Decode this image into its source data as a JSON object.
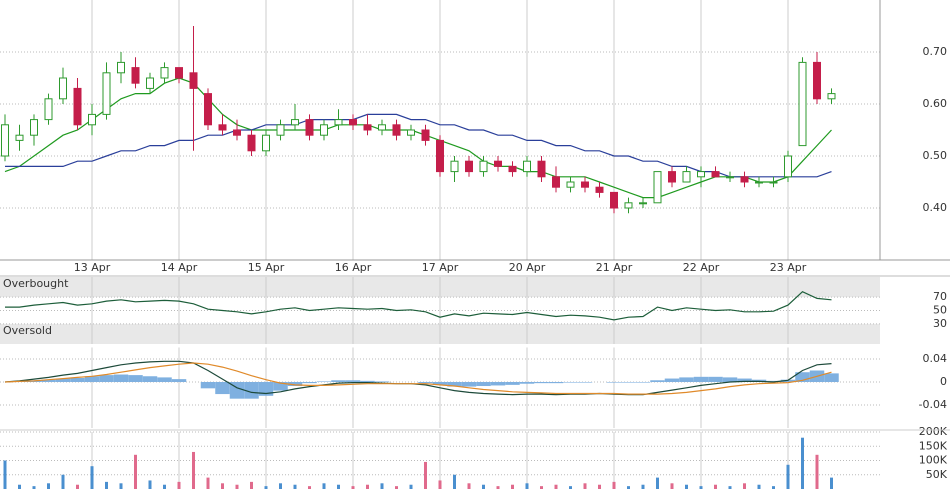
{
  "chart_data": [
    {
      "type": "candlestick",
      "categories": [
        null,
        null,
        null,
        null,
        null,
        null,
        "13 Apr",
        null,
        null,
        null,
        null,
        null,
        "14 Apr",
        null,
        null,
        null,
        null,
        null,
        "15 Apr",
        null,
        null,
        null,
        null,
        null,
        "16 Apr",
        null,
        null,
        null,
        null,
        null,
        "17 Apr",
        null,
        null,
        null,
        null,
        null,
        "20 Apr",
        null,
        null,
        null,
        null,
        null,
        "21 Apr",
        null,
        null,
        null,
        null,
        null,
        "22 Apr",
        null,
        null,
        null,
        null,
        null,
        "23 Apr",
        null,
        null,
        null
      ],
      "open": [
        0.5,
        0.53,
        0.54,
        0.57,
        0.61,
        0.63,
        0.56,
        0.58,
        0.66,
        0.67,
        0.63,
        0.65,
        0.67,
        0.66,
        0.62,
        0.56,
        0.55,
        0.54,
        0.51,
        0.54,
        0.56,
        0.57,
        0.54,
        0.56,
        0.57,
        0.56,
        0.55,
        0.56,
        0.54,
        0.55,
        0.53,
        0.47,
        0.49,
        0.47,
        0.49,
        0.48,
        0.47,
        0.49,
        0.46,
        0.44,
        0.45,
        0.44,
        0.43,
        0.4,
        0.41,
        0.41,
        0.47,
        0.45,
        0.46,
        0.47,
        0.46,
        0.46,
        0.45,
        0.45,
        0.46,
        0.52,
        0.68,
        0.61
      ],
      "high": [
        0.58,
        0.56,
        0.58,
        0.62,
        0.67,
        0.65,
        0.6,
        0.68,
        0.7,
        0.69,
        0.66,
        0.68,
        0.67,
        0.75,
        0.63,
        0.58,
        0.57,
        0.55,
        0.55,
        0.57,
        0.6,
        0.58,
        0.57,
        0.59,
        0.58,
        0.58,
        0.57,
        0.57,
        0.56,
        0.56,
        0.54,
        0.5,
        0.5,
        0.5,
        0.5,
        0.49,
        0.5,
        0.5,
        0.48,
        0.46,
        0.46,
        0.45,
        0.43,
        0.42,
        0.42,
        0.47,
        0.48,
        0.48,
        0.48,
        0.48,
        0.47,
        0.47,
        0.46,
        0.46,
        0.51,
        0.69,
        0.7,
        0.63
      ],
      "low": [
        0.49,
        0.51,
        0.52,
        0.56,
        0.6,
        0.55,
        0.54,
        0.57,
        0.64,
        0.63,
        0.62,
        0.64,
        0.64,
        0.51,
        0.55,
        0.54,
        0.53,
        0.5,
        0.5,
        0.53,
        0.55,
        0.53,
        0.53,
        0.55,
        0.55,
        0.54,
        0.54,
        0.53,
        0.53,
        0.52,
        0.46,
        0.45,
        0.46,
        0.46,
        0.47,
        0.46,
        0.46,
        0.45,
        0.43,
        0.43,
        0.43,
        0.42,
        0.39,
        0.39,
        0.4,
        0.41,
        0.44,
        0.45,
        0.44,
        0.46,
        0.45,
        0.44,
        0.44,
        0.44,
        0.45,
        0.52,
        0.6,
        0.6
      ],
      "close": [
        0.56,
        0.54,
        0.57,
        0.61,
        0.65,
        0.56,
        0.58,
        0.66,
        0.68,
        0.64,
        0.65,
        0.67,
        0.65,
        0.63,
        0.56,
        0.55,
        0.54,
        0.51,
        0.54,
        0.56,
        0.57,
        0.54,
        0.56,
        0.57,
        0.56,
        0.55,
        0.56,
        0.54,
        0.55,
        0.53,
        0.47,
        0.49,
        0.47,
        0.49,
        0.48,
        0.47,
        0.49,
        0.46,
        0.44,
        0.45,
        0.44,
        0.43,
        0.4,
        0.41,
        0.41,
        0.47,
        0.45,
        0.47,
        0.47,
        0.46,
        0.46,
        0.45,
        0.45,
        0.45,
        0.5,
        0.68,
        0.61,
        0.62
      ],
      "up_color": "#2e9a2e",
      "down_color": "#c41e4a",
      "series": [
        {
          "color": "#1f9a1f",
          "values": [
            0.47,
            0.48,
            0.5,
            0.52,
            0.54,
            0.55,
            0.57,
            0.59,
            0.61,
            0.62,
            0.62,
            0.64,
            0.65,
            0.64,
            0.61,
            0.58,
            0.56,
            0.55,
            0.55,
            0.55,
            0.55,
            0.55,
            0.55,
            0.56,
            0.56,
            0.56,
            0.55,
            0.55,
            0.55,
            0.54,
            0.53,
            0.52,
            0.51,
            0.49,
            0.48,
            0.48,
            0.47,
            0.47,
            0.46,
            0.46,
            0.46,
            0.45,
            0.44,
            0.43,
            0.42,
            0.42,
            0.43,
            0.44,
            0.45,
            0.46,
            0.46,
            0.46,
            0.45,
            0.45,
            0.46,
            0.49,
            0.52,
            0.55
          ]
        },
        {
          "color": "#2a3f9a",
          "values": [
            0.48,
            0.48,
            0.48,
            0.48,
            0.48,
            0.49,
            0.49,
            0.5,
            0.51,
            0.51,
            0.52,
            0.52,
            0.53,
            0.53,
            0.54,
            0.54,
            0.55,
            0.55,
            0.56,
            0.56,
            0.56,
            0.57,
            0.57,
            0.57,
            0.57,
            0.58,
            0.58,
            0.58,
            0.57,
            0.57,
            0.56,
            0.56,
            0.55,
            0.55,
            0.54,
            0.54,
            0.53,
            0.53,
            0.52,
            0.52,
            0.51,
            0.51,
            0.5,
            0.5,
            0.49,
            0.49,
            0.48,
            0.48,
            0.47,
            0.47,
            0.46,
            0.46,
            0.46,
            0.46,
            0.46,
            0.46,
            0.46,
            0.47
          ]
        }
      ],
      "ylim": [
        0.3,
        0.8
      ],
      "yticks": [
        {
          "value": 0.4,
          "label": "0.40"
        },
        {
          "value": 0.5,
          "label": "0.50"
        },
        {
          "value": 0.6,
          "label": "0.60"
        },
        {
          "value": 0.7,
          "label": "0.70"
        }
      ],
      "grid": true
    },
    {
      "type": "line",
      "annotations": [
        {
          "text": "Overbought",
          "from": 70,
          "to": 100
        },
        {
          "text": "Oversold",
          "from": 0,
          "to": 30
        }
      ],
      "series": [
        {
          "color": "#1d5e3a",
          "values": [
            55,
            55,
            58,
            60,
            62,
            58,
            60,
            64,
            66,
            63,
            64,
            65,
            64,
            60,
            52,
            50,
            48,
            45,
            48,
            52,
            54,
            50,
            52,
            54,
            53,
            52,
            53,
            50,
            51,
            48,
            40,
            45,
            42,
            46,
            45,
            44,
            47,
            44,
            41,
            43,
            42,
            40,
            36,
            40,
            41,
            55,
            50,
            54,
            52,
            50,
            51,
            48,
            48,
            49,
            58,
            78,
            68,
            66
          ]
        }
      ],
      "ylim": [
        0,
        100
      ],
      "yticks": [
        30,
        50,
        70
      ],
      "grid": true
    },
    {
      "type": "line",
      "series": [
        {
          "type": "bar",
          "color": "#7fb0e0",
          "values": [
            0,
            0.001,
            0.003,
            0.004,
            0.006,
            0.007,
            0.01,
            0.012,
            0.013,
            0.012,
            0.01,
            0.008,
            0.005,
            0,
            -0.011,
            -0.021,
            -0.029,
            -0.029,
            -0.024,
            -0.015,
            -0.007,
            -0.002,
            0.001,
            0.003,
            0.003,
            0.002,
            0.001,
            0,
            0,
            -0.002,
            -0.005,
            -0.008,
            -0.008,
            -0.007,
            -0.006,
            -0.005,
            -0.003,
            -0.002,
            -0.002,
            -0.001,
            -0.001,
            0,
            -0.001,
            -0.001,
            -0.001,
            0.003,
            0.006,
            0.008,
            0.009,
            0.009,
            0.008,
            0.006,
            0.004,
            0.002,
            0.004,
            0.017,
            0.02,
            0.015
          ]
        },
        {
          "color": "#1d4a3a",
          "values": [
            0,
            0.002,
            0.005,
            0.008,
            0.012,
            0.015,
            0.02,
            0.025,
            0.03,
            0.033,
            0.035,
            0.036,
            0.036,
            0.033,
            0.02,
            0.005,
            -0.01,
            -0.018,
            -0.02,
            -0.017,
            -0.012,
            -0.008,
            -0.005,
            -0.002,
            -0.001,
            -0.001,
            -0.002,
            -0.003,
            -0.003,
            -0.005,
            -0.01,
            -0.015,
            -0.018,
            -0.02,
            -0.021,
            -0.022,
            -0.021,
            -0.021,
            -0.022,
            -0.021,
            -0.021,
            -0.02,
            -0.021,
            -0.022,
            -0.022,
            -0.018,
            -0.014,
            -0.01,
            -0.006,
            -0.003,
            0,
            0.001,
            0.001,
            0,
            0.003,
            0.02,
            0.03,
            0.032
          ]
        },
        {
          "color": "#e08a2a",
          "values": [
            0,
            0.001,
            0.002,
            0.004,
            0.006,
            0.008,
            0.01,
            0.013,
            0.017,
            0.021,
            0.025,
            0.028,
            0.031,
            0.033,
            0.031,
            0.026,
            0.019,
            0.011,
            0.004,
            -0.002,
            -0.005,
            -0.006,
            -0.006,
            -0.005,
            -0.004,
            -0.003,
            -0.003,
            -0.003,
            -0.003,
            -0.003,
            -0.005,
            -0.007,
            -0.01,
            -0.013,
            -0.015,
            -0.017,
            -0.018,
            -0.019,
            -0.02,
            -0.02,
            -0.02,
            -0.02,
            -0.02,
            -0.021,
            -0.021,
            -0.021,
            -0.02,
            -0.018,
            -0.015,
            -0.012,
            -0.008,
            -0.005,
            -0.003,
            -0.002,
            -0.001,
            0.003,
            0.01,
            0.017
          ]
        }
      ],
      "ylim": [
        -0.08,
        0.06
      ],
      "yticks": [
        -0.04,
        0,
        0.04
      ],
      "grid": true
    },
    {
      "type": "bar",
      "values": [
        100000,
        15000,
        10000,
        20000,
        50000,
        15000,
        80000,
        25000,
        20000,
        120000,
        30000,
        15000,
        25000,
        130000,
        40000,
        20000,
        15000,
        25000,
        10000,
        20000,
        15000,
        10000,
        20000,
        15000,
        10000,
        15000,
        20000,
        10000,
        15000,
        95000,
        30000,
        50000,
        20000,
        15000,
        10000,
        15000,
        20000,
        10000,
        15000,
        10000,
        20000,
        15000,
        25000,
        10000,
        15000,
        40000,
        20000,
        15000,
        10000,
        15000,
        10000,
        20000,
        15000,
        10000,
        85000,
        180000,
        120000,
        40000
      ],
      "up_color": "#4a8fcf",
      "down_color": "#e06a8c",
      "ylim": [
        0,
        200000
      ],
      "yticks": [
        {
          "value": 50000,
          "label": "50K"
        },
        {
          "value": 100000,
          "label": "100K"
        },
        {
          "value": 150000,
          "label": "150K"
        },
        {
          "value": 200000,
          "label": "200K"
        }
      ],
      "grid": true
    }
  ]
}
